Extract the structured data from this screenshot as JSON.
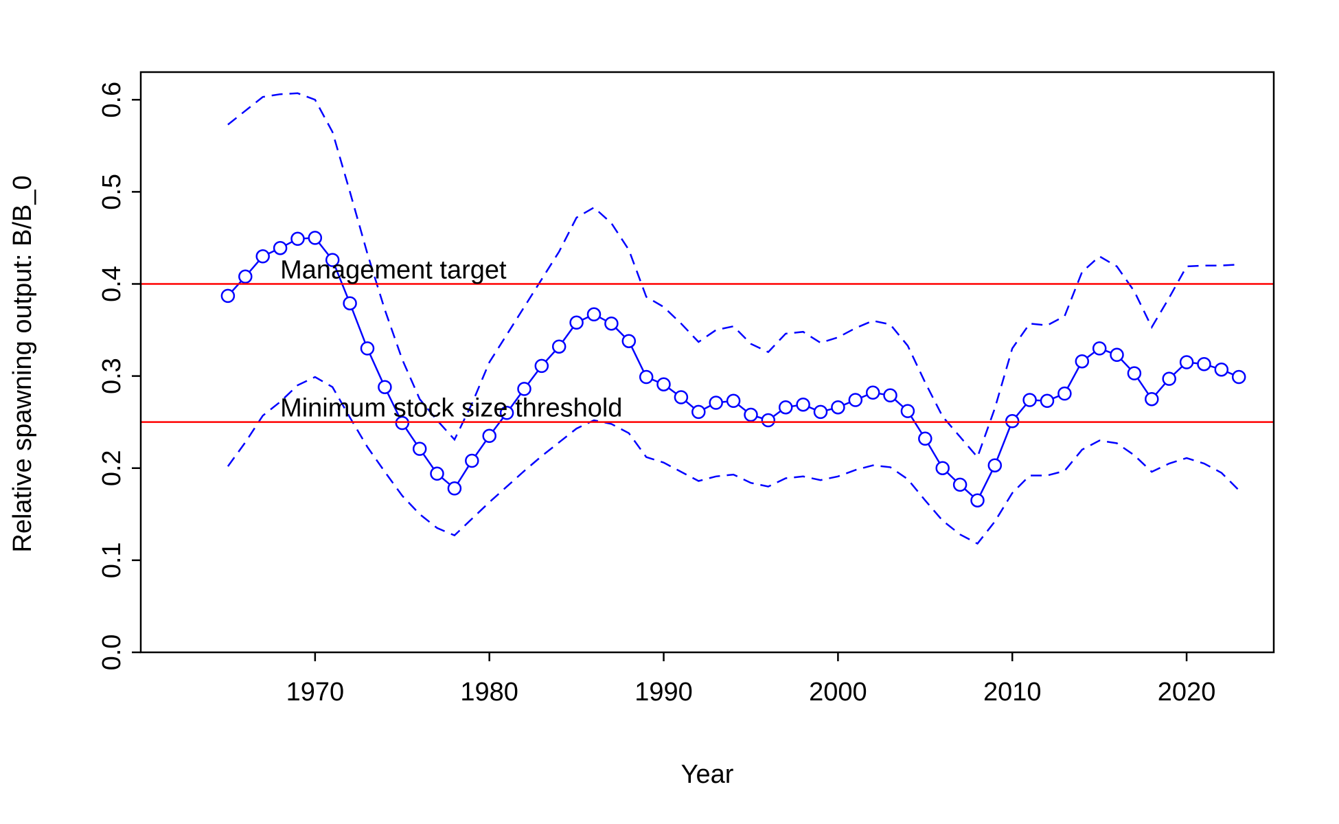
{
  "chart_data": {
    "type": "line",
    "title": "",
    "xlabel": "Year",
    "ylabel": "Relative spawning output: B/B_0",
    "xlim": [
      1960,
      2025
    ],
    "ylim": [
      0,
      0.63
    ],
    "x_ticks": [
      1970,
      1980,
      1990,
      2000,
      2010,
      2020
    ],
    "y_ticks": [
      0.0,
      0.1,
      0.2,
      0.3,
      0.4,
      0.5,
      0.6
    ],
    "y_tick_labels": [
      "0.0",
      "0.1",
      "0.2",
      "0.3",
      "0.4",
      "0.5",
      "0.6"
    ],
    "grid": false,
    "legend": "none",
    "colors": {
      "series": "#0000ff",
      "reference": "#ff0000",
      "axis": "#000000"
    },
    "reference_lines": [
      {
        "label": "Management target",
        "y": 0.4,
        "label_x": 1968
      },
      {
        "label": "Minimum stock size threshold",
        "y": 0.25,
        "label_x": 1968
      }
    ],
    "series": [
      {
        "style": "line-points",
        "x": [
          1965,
          1966,
          1967,
          1968,
          1969,
          1970,
          1971,
          1972,
          1973,
          1974,
          1975,
          1976,
          1977,
          1978,
          1979,
          1980,
          1981,
          1982,
          1983,
          1984,
          1985,
          1986,
          1987,
          1988,
          1989,
          1990,
          1991,
          1992,
          1993,
          1994,
          1995,
          1996,
          1997,
          1998,
          1999,
          2000,
          2001,
          2002,
          2003,
          2004,
          2005,
          2006,
          2007,
          2008,
          2009,
          2010,
          2011,
          2012,
          2013,
          2014,
          2015,
          2016,
          2017,
          2018,
          2019,
          2020,
          2021,
          2022,
          2023
        ],
        "values": [
          0.387,
          0.408,
          0.43,
          0.439,
          0.449,
          0.45,
          0.426,
          0.379,
          0.33,
          0.288,
          0.249,
          0.221,
          0.194,
          0.178,
          0.208,
          0.235,
          0.26,
          0.286,
          0.311,
          0.332,
          0.358,
          0.367,
          0.357,
          0.338,
          0.299,
          0.291,
          0.277,
          0.261,
          0.271,
          0.273,
          0.258,
          0.252,
          0.266,
          0.269,
          0.261,
          0.266,
          0.274,
          0.282,
          0.279,
          0.262,
          0.232,
          0.2,
          0.182,
          0.165,
          0.203,
          0.251,
          0.274,
          0.273,
          0.281,
          0.316,
          0.33,
          0.323,
          0.303,
          0.275,
          0.297,
          0.315,
          0.313,
          0.307,
          0.299
        ]
      },
      {
        "style": "dashed",
        "x": [
          1965,
          1966,
          1967,
          1968,
          1969,
          1970,
          1971,
          1972,
          1973,
          1974,
          1975,
          1976,
          1977,
          1978,
          1979,
          1980,
          1981,
          1982,
          1983,
          1984,
          1985,
          1986,
          1987,
          1988,
          1989,
          1990,
          1991,
          1992,
          1993,
          1994,
          1995,
          1996,
          1997,
          1998,
          1999,
          2000,
          2001,
          2002,
          2003,
          2004,
          2005,
          2006,
          2007,
          2008,
          2009,
          2010,
          2011,
          2012,
          2013,
          2014,
          2015,
          2016,
          2017,
          2018,
          2019,
          2020,
          2021,
          2022,
          2023
        ],
        "values": [
          0.573,
          0.588,
          0.603,
          0.606,
          0.607,
          0.6,
          0.565,
          0.5,
          0.433,
          0.372,
          0.318,
          0.275,
          0.252,
          0.231,
          0.27,
          0.315,
          0.345,
          0.375,
          0.405,
          0.435,
          0.472,
          0.483,
          0.466,
          0.437,
          0.386,
          0.375,
          0.357,
          0.337,
          0.35,
          0.354,
          0.335,
          0.326,
          0.346,
          0.348,
          0.336,
          0.342,
          0.352,
          0.36,
          0.356,
          0.333,
          0.293,
          0.256,
          0.234,
          0.212,
          0.265,
          0.33,
          0.357,
          0.355,
          0.365,
          0.413,
          0.43,
          0.419,
          0.392,
          0.353,
          0.385,
          0.419,
          0.42,
          0.42,
          0.421
        ]
      },
      {
        "style": "dashed",
        "x": [
          1965,
          1966,
          1967,
          1968,
          1969,
          1970,
          1971,
          1972,
          1973,
          1974,
          1975,
          1976,
          1977,
          1978,
          1979,
          1980,
          1981,
          1982,
          1983,
          1984,
          1985,
          1986,
          1987,
          1988,
          1989,
          1990,
          1991,
          1992,
          1993,
          1994,
          1995,
          1996,
          1997,
          1998,
          1999,
          2000,
          2001,
          2002,
          2003,
          2004,
          2005,
          2006,
          2007,
          2008,
          2009,
          2010,
          2011,
          2012,
          2013,
          2014,
          2015,
          2016,
          2017,
          2018,
          2019,
          2020,
          2021,
          2022,
          2023
        ],
        "values": [
          0.202,
          0.228,
          0.257,
          0.272,
          0.29,
          0.299,
          0.288,
          0.255,
          0.223,
          0.196,
          0.17,
          0.15,
          0.135,
          0.127,
          0.145,
          0.163,
          0.18,
          0.197,
          0.213,
          0.228,
          0.243,
          0.252,
          0.248,
          0.238,
          0.212,
          0.206,
          0.196,
          0.186,
          0.191,
          0.193,
          0.184,
          0.18,
          0.189,
          0.191,
          0.187,
          0.191,
          0.198,
          0.203,
          0.201,
          0.188,
          0.165,
          0.143,
          0.128,
          0.118,
          0.142,
          0.173,
          0.192,
          0.192,
          0.197,
          0.22,
          0.23,
          0.227,
          0.214,
          0.196,
          0.205,
          0.211,
          0.205,
          0.195,
          0.176
        ]
      }
    ]
  }
}
